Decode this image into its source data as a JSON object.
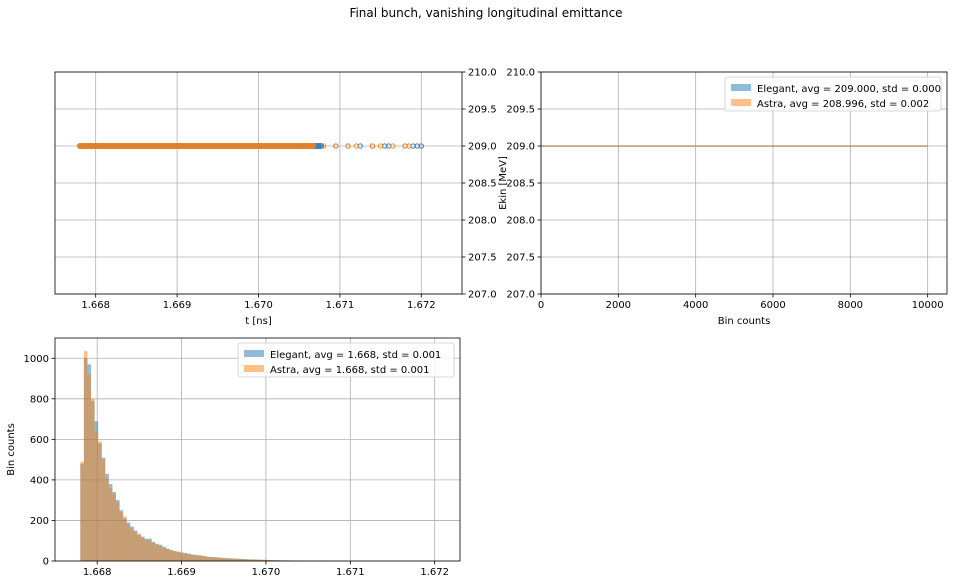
{
  "figure": {
    "title": "Final bunch, vanishing longitudinal emittance"
  },
  "colors": {
    "elegant": "#1f77b4",
    "astra": "#ff7f0e",
    "grid": "#b0b0b0",
    "axes": "#000000"
  },
  "chart_data": [
    {
      "id": "scatter-t-ekin",
      "type": "scatter",
      "title": "",
      "xlabel": "t [ns]",
      "ylabel": "Ekin [MeV]",
      "xlim": [
        1.6675,
        1.6725
      ],
      "ylim": [
        207.0,
        210.0
      ],
      "xticks": [
        "1.668",
        "1.669",
        "1.670",
        "1.671",
        "1.672"
      ],
      "yticks": [
        "207.0",
        "207.5",
        "208.0",
        "208.5",
        "209.0",
        "209.5",
        "210.0"
      ],
      "y_axis_side": "right",
      "grid": true,
      "series": [
        {
          "name": "Elegant",
          "marker": "open-circle",
          "band": {
            "x_start": 1.6678,
            "x_end": 1.6708,
            "y": 209.0
          },
          "points": [
            {
              "x": 1.67095,
              "y": 209.0
            },
            {
              "x": 1.6711,
              "y": 209.0
            },
            {
              "x": 1.67125,
              "y": 209.0
            },
            {
              "x": 1.6714,
              "y": 209.0
            },
            {
              "x": 1.67155,
              "y": 209.0
            },
            {
              "x": 1.6716,
              "y": 209.0
            },
            {
              "x": 1.6718,
              "y": 209.0
            },
            {
              "x": 1.6719,
              "y": 209.0
            },
            {
              "x": 1.67195,
              "y": 209.0
            },
            {
              "x": 1.672,
              "y": 209.0
            }
          ]
        },
        {
          "name": "Astra",
          "marker": "open-circle",
          "band": {
            "x_start": 1.6678,
            "x_end": 1.6707,
            "y": 209.0
          },
          "points": [
            {
              "x": 1.6708,
              "y": 209.0
            },
            {
              "x": 1.67095,
              "y": 209.0
            },
            {
              "x": 1.6711,
              "y": 209.0
            },
            {
              "x": 1.6712,
              "y": 209.0
            },
            {
              "x": 1.6714,
              "y": 209.0
            },
            {
              "x": 1.6715,
              "y": 209.0
            },
            {
              "x": 1.67165,
              "y": 209.0
            },
            {
              "x": 1.6718,
              "y": 209.0
            },
            {
              "x": 1.67185,
              "y": 209.0
            }
          ]
        }
      ]
    },
    {
      "id": "hist-ekin",
      "type": "bar",
      "orientation": "horizontal",
      "title": "",
      "xlabel": "Bin counts",
      "ylabel": "Ekin [MeV]",
      "xlim": [
        0,
        10500
      ],
      "ylim": [
        207.0,
        210.0
      ],
      "xticks": [
        "0",
        "2000",
        "4000",
        "6000",
        "8000",
        "10000"
      ],
      "yticks": [
        "207.0",
        "207.5",
        "208.0",
        "208.5",
        "209.0",
        "209.5",
        "210.0"
      ],
      "grid": true,
      "legend": "top-right",
      "series": [
        {
          "name": "Elegant, avg = 209.000, std = 0.000",
          "bins": [
            {
              "y": 209.0,
              "count": 10000
            }
          ]
        },
        {
          "name": "Astra, avg = 208.996, std = 0.002",
          "bins": [
            {
              "y": 209.0,
              "count": 10000
            }
          ]
        }
      ]
    },
    {
      "id": "hist-t",
      "type": "bar",
      "title": "",
      "xlabel": "",
      "ylabel": "Bin counts",
      "xlim": [
        1.6675,
        1.6723
      ],
      "ylim": [
        0,
        1100
      ],
      "xticks": [
        "1.668",
        "1.669",
        "1.670",
        "1.671",
        "1.672"
      ],
      "yticks": [
        "0",
        "200",
        "400",
        "600",
        "800",
        "1000"
      ],
      "grid": true,
      "legend": "top-right",
      "bin_start": 1.6678,
      "bin_width": 4.23e-05,
      "series": [
        {
          "name": "Elegant, avg = 1.668, std = 0.001",
          "values": [
            480,
            1000,
            970,
            790,
            690,
            580,
            510,
            430,
            380,
            340,
            300,
            250,
            210,
            190,
            170,
            150,
            130,
            120,
            110,
            110,
            95,
            85,
            80,
            70,
            60,
            55,
            50,
            45,
            42,
            40,
            36,
            32,
            30,
            28,
            25,
            22,
            20,
            19,
            18,
            16,
            15,
            14,
            13,
            12,
            11,
            10,
            9,
            8,
            8,
            7,
            6,
            6,
            5,
            5,
            4,
            4,
            3,
            3,
            3,
            2,
            2,
            2,
            2,
            1,
            1,
            2,
            1,
            1,
            1,
            1,
            0,
            1,
            0,
            1,
            0,
            0,
            0,
            0,
            0,
            0,
            0,
            0,
            0,
            0,
            0,
            0,
            0,
            0,
            0,
            0,
            0,
            0,
            0,
            0,
            0,
            0,
            0,
            0,
            0,
            0
          ]
        },
        {
          "name": "Astra, avg = 1.668, std = 0.001",
          "values": [
            490,
            1035,
            920,
            800,
            640,
            590,
            500,
            410,
            360,
            330,
            290,
            240,
            220,
            180,
            160,
            145,
            135,
            115,
            105,
            100,
            90,
            80,
            75,
            65,
            62,
            52,
            48,
            46,
            40,
            38,
            34,
            30,
            28,
            26,
            24,
            21,
            20,
            18,
            17,
            15,
            14,
            13,
            12,
            11,
            10,
            9,
            9,
            8,
            7,
            7,
            6,
            5,
            5,
            4,
            4,
            3,
            3,
            3,
            2,
            2,
            2,
            2,
            1,
            1,
            1,
            1,
            1,
            1,
            1,
            0,
            1,
            0,
            1,
            0,
            0,
            0,
            0,
            0,
            0,
            0,
            0,
            0,
            0,
            0,
            0,
            0,
            0,
            0,
            0,
            0,
            0,
            0,
            0,
            0,
            0,
            0,
            0,
            0,
            0,
            0
          ]
        }
      ]
    }
  ]
}
